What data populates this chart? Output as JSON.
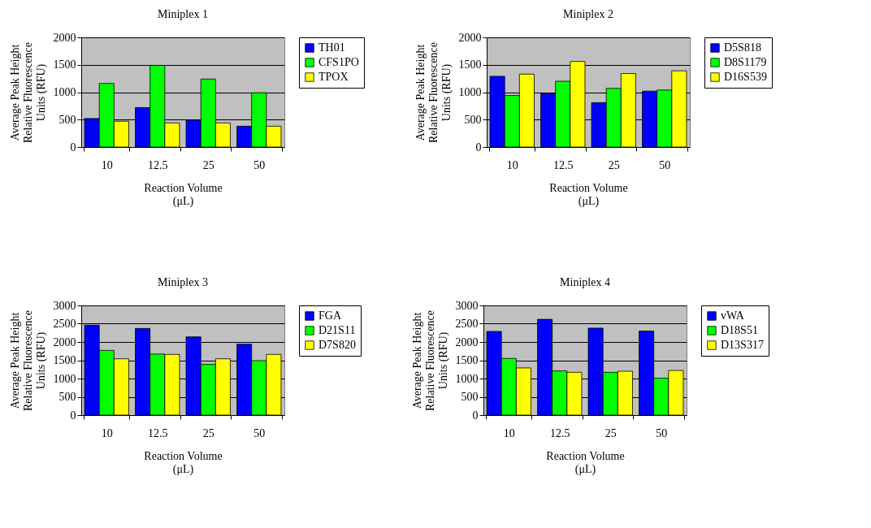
{
  "chart_data": [
    {
      "type": "bar",
      "title": "Miniplex 1",
      "xlabel": "Reaction Volume\n(μL)",
      "ylabel": "Average Peak Height\nRelative Fluorescence\nUnits (RFU)",
      "categories": [
        "10",
        "12.5",
        "25",
        "50"
      ],
      "ylim": [
        0,
        2000
      ],
      "yticks": [
        0,
        500,
        1000,
        1500,
        2000
      ],
      "grid": "y",
      "legend": "right",
      "series": [
        {
          "name": "TH01",
          "color": "#0000ff",
          "values": [
            520,
            720,
            490,
            380
          ]
        },
        {
          "name": "CFS1PO",
          "color": "#00ff00",
          "values": [
            1160,
            1490,
            1240,
            990
          ]
        },
        {
          "name": "TPOX",
          "color": "#ffff00",
          "values": [
            470,
            440,
            440,
            380
          ]
        }
      ]
    },
    {
      "type": "bar",
      "title": "Miniplex 2",
      "xlabel": "Reaction Volume\n(μL)",
      "ylabel": "Average Peak Height\nRelative Fluorescence\nUnits (RFU)",
      "categories": [
        "10",
        "12.5",
        "25",
        "50"
      ],
      "ylim": [
        0,
        2000
      ],
      "yticks": [
        0,
        500,
        1000,
        1500,
        2000
      ],
      "grid": "y",
      "legend": "right",
      "series": [
        {
          "name": "D5S818",
          "color": "#0000ff",
          "values": [
            1290,
            970,
            810,
            1020
          ]
        },
        {
          "name": "D8S1179",
          "color": "#00ff00",
          "values": [
            940,
            1200,
            1070,
            1040
          ]
        },
        {
          "name": "D16S539",
          "color": "#ffff00",
          "values": [
            1330,
            1560,
            1340,
            1390
          ]
        }
      ]
    },
    {
      "type": "bar",
      "title": "Miniplex 3",
      "xlabel": "Reaction Volume\n(μL)",
      "ylabel": "Average Peak Height\nRelative Fluorescence\nUnits (RFU)",
      "categories": [
        "10",
        "12.5",
        "25",
        "50"
      ],
      "ylim": [
        0,
        3000
      ],
      "yticks": [
        0,
        500,
        1000,
        1500,
        2000,
        2500,
        3000
      ],
      "grid": "y",
      "legend": "right",
      "series": [
        {
          "name": "FGA",
          "color": "#0000ff",
          "values": [
            2460,
            2370,
            2140,
            1940
          ]
        },
        {
          "name": "D21S11",
          "color": "#00ff00",
          "values": [
            1770,
            1670,
            1390,
            1490
          ]
        },
        {
          "name": "D7S820",
          "color": "#ffff00",
          "values": [
            1540,
            1660,
            1540,
            1660
          ]
        }
      ]
    },
    {
      "type": "bar",
      "title": "Miniplex 4",
      "xlabel": "Reaction Volume\n(μL)",
      "ylabel": "Average Peak Height\nRelative Fluorescence\nUnits (RFU)",
      "categories": [
        "10",
        "12.5",
        "25",
        "50"
      ],
      "ylim": [
        0,
        3000
      ],
      "yticks": [
        0,
        500,
        1000,
        1500,
        2000,
        2500,
        3000
      ],
      "grid": "y",
      "legend": "right",
      "series": [
        {
          "name": "vWA",
          "color": "#0000ff",
          "values": [
            2290,
            2620,
            2380,
            2300
          ]
        },
        {
          "name": "D18S51",
          "color": "#00ff00",
          "values": [
            1550,
            1210,
            1170,
            1010
          ]
        },
        {
          "name": "D13S317",
          "color": "#ffff00",
          "values": [
            1290,
            1170,
            1200,
            1220
          ]
        }
      ]
    }
  ]
}
